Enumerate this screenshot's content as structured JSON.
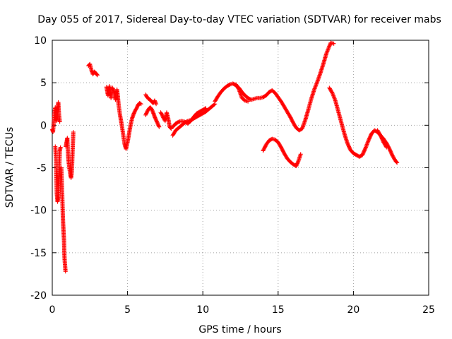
{
  "chart_data": {
    "type": "scatter",
    "title": "Day 055 of 2017, Sidereal Day-to-day VTEC variation (SDTVAR) for receiver mabs",
    "xlabel": "GPS time / hours",
    "ylabel": "SDTVAR / TECUs",
    "xlim": [
      0,
      25
    ],
    "ylim": [
      -20,
      10
    ],
    "xticks": [
      0,
      5,
      10,
      15,
      20,
      25
    ],
    "yticks": [
      -20,
      -15,
      -10,
      -5,
      0,
      5,
      10
    ],
    "grid": true,
    "marker": "+",
    "color": "#ff0000",
    "series": [
      {
        "name": "SDTVAR",
        "segments": [
          [
            [
              0.0,
              -0.5
            ],
            [
              0.05,
              -0.8
            ],
            [
              0.1,
              0.3
            ],
            [
              0.15,
              1.5
            ],
            [
              0.2,
              2.1
            ],
            [
              0.25,
              1.0
            ],
            [
              0.3,
              0.5
            ],
            [
              0.35,
              1.8
            ],
            [
              0.4,
              2.7
            ],
            [
              0.45,
              1.2
            ],
            [
              0.5,
              0.4
            ]
          ],
          [
            [
              0.2,
              -2.5
            ],
            [
              0.25,
              -4.2
            ],
            [
              0.3,
              -8.0
            ],
            [
              0.35,
              -9.0
            ],
            [
              0.4,
              -8.5
            ],
            [
              0.45,
              -6.0
            ],
            [
              0.5,
              -3.0
            ],
            [
              0.55,
              -2.6
            ]
          ],
          [
            [
              0.6,
              -5.0
            ],
            [
              0.65,
              -7.5
            ],
            [
              0.7,
              -10.5
            ],
            [
              0.72,
              -11.5
            ],
            [
              0.75,
              -12.5
            ],
            [
              0.78,
              -13.5
            ],
            [
              0.8,
              -15.0
            ],
            [
              0.82,
              -15.8
            ],
            [
              0.85,
              -16.5
            ],
            [
              0.88,
              -17.2
            ]
          ],
          [
            [
              0.9,
              -2.5
            ],
            [
              0.95,
              -2.0
            ],
            [
              1.0,
              -1.5
            ],
            [
              1.05,
              -3.5
            ],
            [
              1.1,
              -4.5
            ],
            [
              1.15,
              -5.2
            ],
            [
              1.2,
              -5.8
            ],
            [
              1.25,
              -6.2
            ],
            [
              1.3,
              -5.5
            ],
            [
              1.35,
              -3.0
            ],
            [
              1.4,
              -0.8
            ]
          ],
          [
            [
              2.4,
              7.0
            ],
            [
              2.5,
              7.2
            ],
            [
              2.6,
              6.5
            ],
            [
              2.7,
              6.0
            ],
            [
              2.8,
              6.3
            ],
            [
              2.9,
              6.1
            ],
            [
              3.0,
              5.9
            ]
          ],
          [
            [
              3.6,
              4.5
            ],
            [
              3.7,
              3.5
            ],
            [
              3.8,
              4.6
            ],
            [
              3.9,
              3.2
            ],
            [
              4.0,
              4.4
            ],
            [
              4.1,
              4.0
            ],
            [
              4.2,
              3.0
            ],
            [
              4.3,
              4.2
            ],
            [
              4.35,
              3.5
            ],
            [
              4.4,
              2.5
            ],
            [
              4.5,
              1.2
            ],
            [
              4.6,
              0.2
            ],
            [
              4.7,
              -1.0
            ],
            [
              4.8,
              -2.2
            ],
            [
              4.9,
              -2.8
            ],
            [
              5.0,
              -2.0
            ],
            [
              5.1,
              -1.0
            ],
            [
              5.2,
              0.0
            ],
            [
              5.3,
              0.8
            ],
            [
              5.4,
              1.3
            ],
            [
              5.5,
              1.7
            ],
            [
              5.6,
              2.0
            ],
            [
              5.7,
              2.4
            ],
            [
              5.8,
              2.6
            ],
            [
              5.9,
              2.5
            ]
          ],
          [
            [
              6.2,
              3.6
            ],
            [
              6.3,
              3.3
            ],
            [
              6.4,
              3.1
            ],
            [
              6.5,
              3.0
            ],
            [
              6.6,
              2.8
            ],
            [
              6.7,
              2.6
            ],
            [
              6.8,
              2.9
            ],
            [
              6.9,
              2.5
            ]
          ],
          [
            [
              6.2,
              1.2
            ],
            [
              6.3,
              1.6
            ],
            [
              6.4,
              1.9
            ],
            [
              6.5,
              2.1
            ],
            [
              6.6,
              1.9
            ],
            [
              6.7,
              1.5
            ],
            [
              6.8,
              1.0
            ],
            [
              6.9,
              0.6
            ],
            [
              7.0,
              0.2
            ],
            [
              7.1,
              -0.2
            ]
          ],
          [
            [
              7.2,
              1.5
            ],
            [
              7.3,
              1.2
            ],
            [
              7.4,
              0.8
            ],
            [
              7.5,
              0.5
            ],
            [
              7.6,
              1.5
            ],
            [
              7.7,
              0.8
            ],
            [
              7.8,
              -0.2
            ],
            [
              7.9,
              -0.4
            ]
          ],
          [
            [
              8.0,
              -1.2
            ],
            [
              8.2,
              -0.6
            ],
            [
              8.4,
              -0.3
            ],
            [
              8.6,
              0.0
            ],
            [
              8.8,
              0.3
            ],
            [
              9.0,
              0.5
            ],
            [
              9.2,
              0.6
            ],
            [
              9.4,
              0.8
            ],
            [
              9.6,
              1.0
            ],
            [
              9.8,
              1.2
            ],
            [
              10.0,
              1.4
            ],
            [
              10.2,
              1.6
            ],
            [
              10.4,
              1.9
            ],
            [
              10.6,
              2.2
            ],
            [
              10.8,
              2.5
            ]
          ],
          [
            [
              8.0,
              -0.2
            ],
            [
              8.2,
              0.2
            ],
            [
              8.4,
              0.4
            ],
            [
              8.6,
              0.5
            ],
            [
              8.8,
              0.4
            ],
            [
              9.0,
              0.2
            ],
            [
              9.2,
              0.5
            ],
            [
              9.4,
              1.0
            ],
            [
              9.6,
              1.4
            ],
            [
              9.8,
              1.6
            ],
            [
              10.0,
              1.8
            ],
            [
              10.2,
              2.0
            ]
          ],
          [
            [
              10.8,
              2.8
            ],
            [
              11.0,
              3.4
            ],
            [
              11.2,
              3.9
            ],
            [
              11.4,
              4.3
            ],
            [
              11.6,
              4.6
            ],
            [
              11.8,
              4.8
            ],
            [
              12.0,
              4.9
            ],
            [
              12.2,
              4.7
            ],
            [
              12.4,
              4.4
            ],
            [
              12.6,
              3.9
            ],
            [
              12.8,
              3.5
            ],
            [
              13.0,
              3.2
            ],
            [
              13.2,
              3.0
            ],
            [
              13.4,
              3.1
            ],
            [
              13.6,
              3.2
            ],
            [
              13.8,
              3.2
            ],
            [
              14.0,
              3.3
            ],
            [
              14.2,
              3.5
            ],
            [
              14.4,
              3.9
            ],
            [
              14.6,
              4.1
            ],
            [
              14.8,
              3.8
            ],
            [
              15.0,
              3.3
            ],
            [
              15.2,
              2.8
            ],
            [
              15.4,
              2.2
            ],
            [
              15.6,
              1.6
            ],
            [
              15.8,
              1.0
            ],
            [
              16.0,
              0.3
            ],
            [
              16.2,
              -0.3
            ],
            [
              16.4,
              -0.6
            ],
            [
              16.6,
              -0.4
            ],
            [
              16.8,
              0.6
            ],
            [
              17.0,
              1.8
            ],
            [
              17.2,
              3.1
            ],
            [
              17.4,
              4.2
            ],
            [
              17.6,
              5.1
            ],
            [
              17.8,
              6.1
            ],
            [
              18.0,
              7.2
            ],
            [
              18.2,
              8.4
            ],
            [
              18.4,
              9.3
            ],
            [
              18.5,
              9.7
            ],
            [
              18.7,
              9.6
            ]
          ],
          [
            [
              12.2,
              4.8
            ],
            [
              12.4,
              4.2
            ],
            [
              12.6,
              3.2
            ],
            [
              12.8,
              2.9
            ],
            [
              13.0,
              2.8
            ]
          ],
          [
            [
              14.0,
              -3.0
            ],
            [
              14.2,
              -2.3
            ],
            [
              14.4,
              -1.8
            ],
            [
              14.6,
              -1.6
            ],
            [
              14.8,
              -1.7
            ],
            [
              15.0,
              -2.0
            ],
            [
              15.2,
              -2.6
            ],
            [
              15.4,
              -3.3
            ],
            [
              15.6,
              -3.9
            ],
            [
              15.8,
              -4.3
            ],
            [
              16.0,
              -4.6
            ],
            [
              16.2,
              -4.8
            ],
            [
              16.35,
              -4.2
            ],
            [
              16.5,
              -3.4
            ]
          ],
          [
            [
              18.4,
              4.4
            ],
            [
              18.6,
              3.8
            ],
            [
              18.8,
              2.9
            ],
            [
              19.0,
              1.6
            ],
            [
              19.2,
              0.3
            ],
            [
              19.4,
              -1.0
            ],
            [
              19.6,
              -2.1
            ],
            [
              19.8,
              -2.9
            ],
            [
              20.0,
              -3.3
            ],
            [
              20.2,
              -3.5
            ],
            [
              20.4,
              -3.7
            ],
            [
              20.6,
              -3.5
            ],
            [
              20.8,
              -2.7
            ],
            [
              21.0,
              -1.8
            ],
            [
              21.2,
              -1.0
            ],
            [
              21.4,
              -0.6
            ],
            [
              21.6,
              -0.8
            ],
            [
              21.8,
              -1.2
            ],
            [
              22.0,
              -1.6
            ],
            [
              22.2,
              -2.1
            ],
            [
              22.4,
              -2.8
            ],
            [
              22.6,
              -3.6
            ],
            [
              22.8,
              -4.2
            ],
            [
              22.9,
              -4.4
            ]
          ],
          [
            [
              21.6,
              -0.6
            ],
            [
              21.8,
              -1.2
            ],
            [
              22.0,
              -2.0
            ],
            [
              22.2,
              -2.6
            ]
          ]
        ]
      }
    ]
  }
}
